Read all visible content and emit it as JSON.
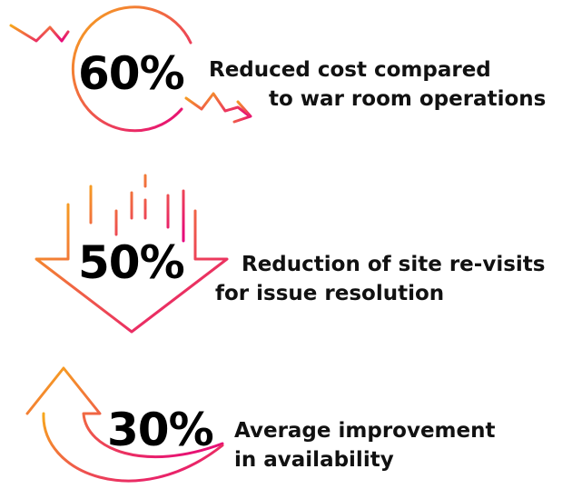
{
  "items": [
    {
      "stat": "60%",
      "lines": [
        "Reduced cost compared",
        "to war room operations"
      ]
    },
    {
      "stat": "50%",
      "lines": [
        "Reduction of site re-visits",
        "for issue resolution"
      ]
    },
    {
      "stat": "30%",
      "lines": [
        "Average improvement",
        "in availability"
      ]
    }
  ]
}
